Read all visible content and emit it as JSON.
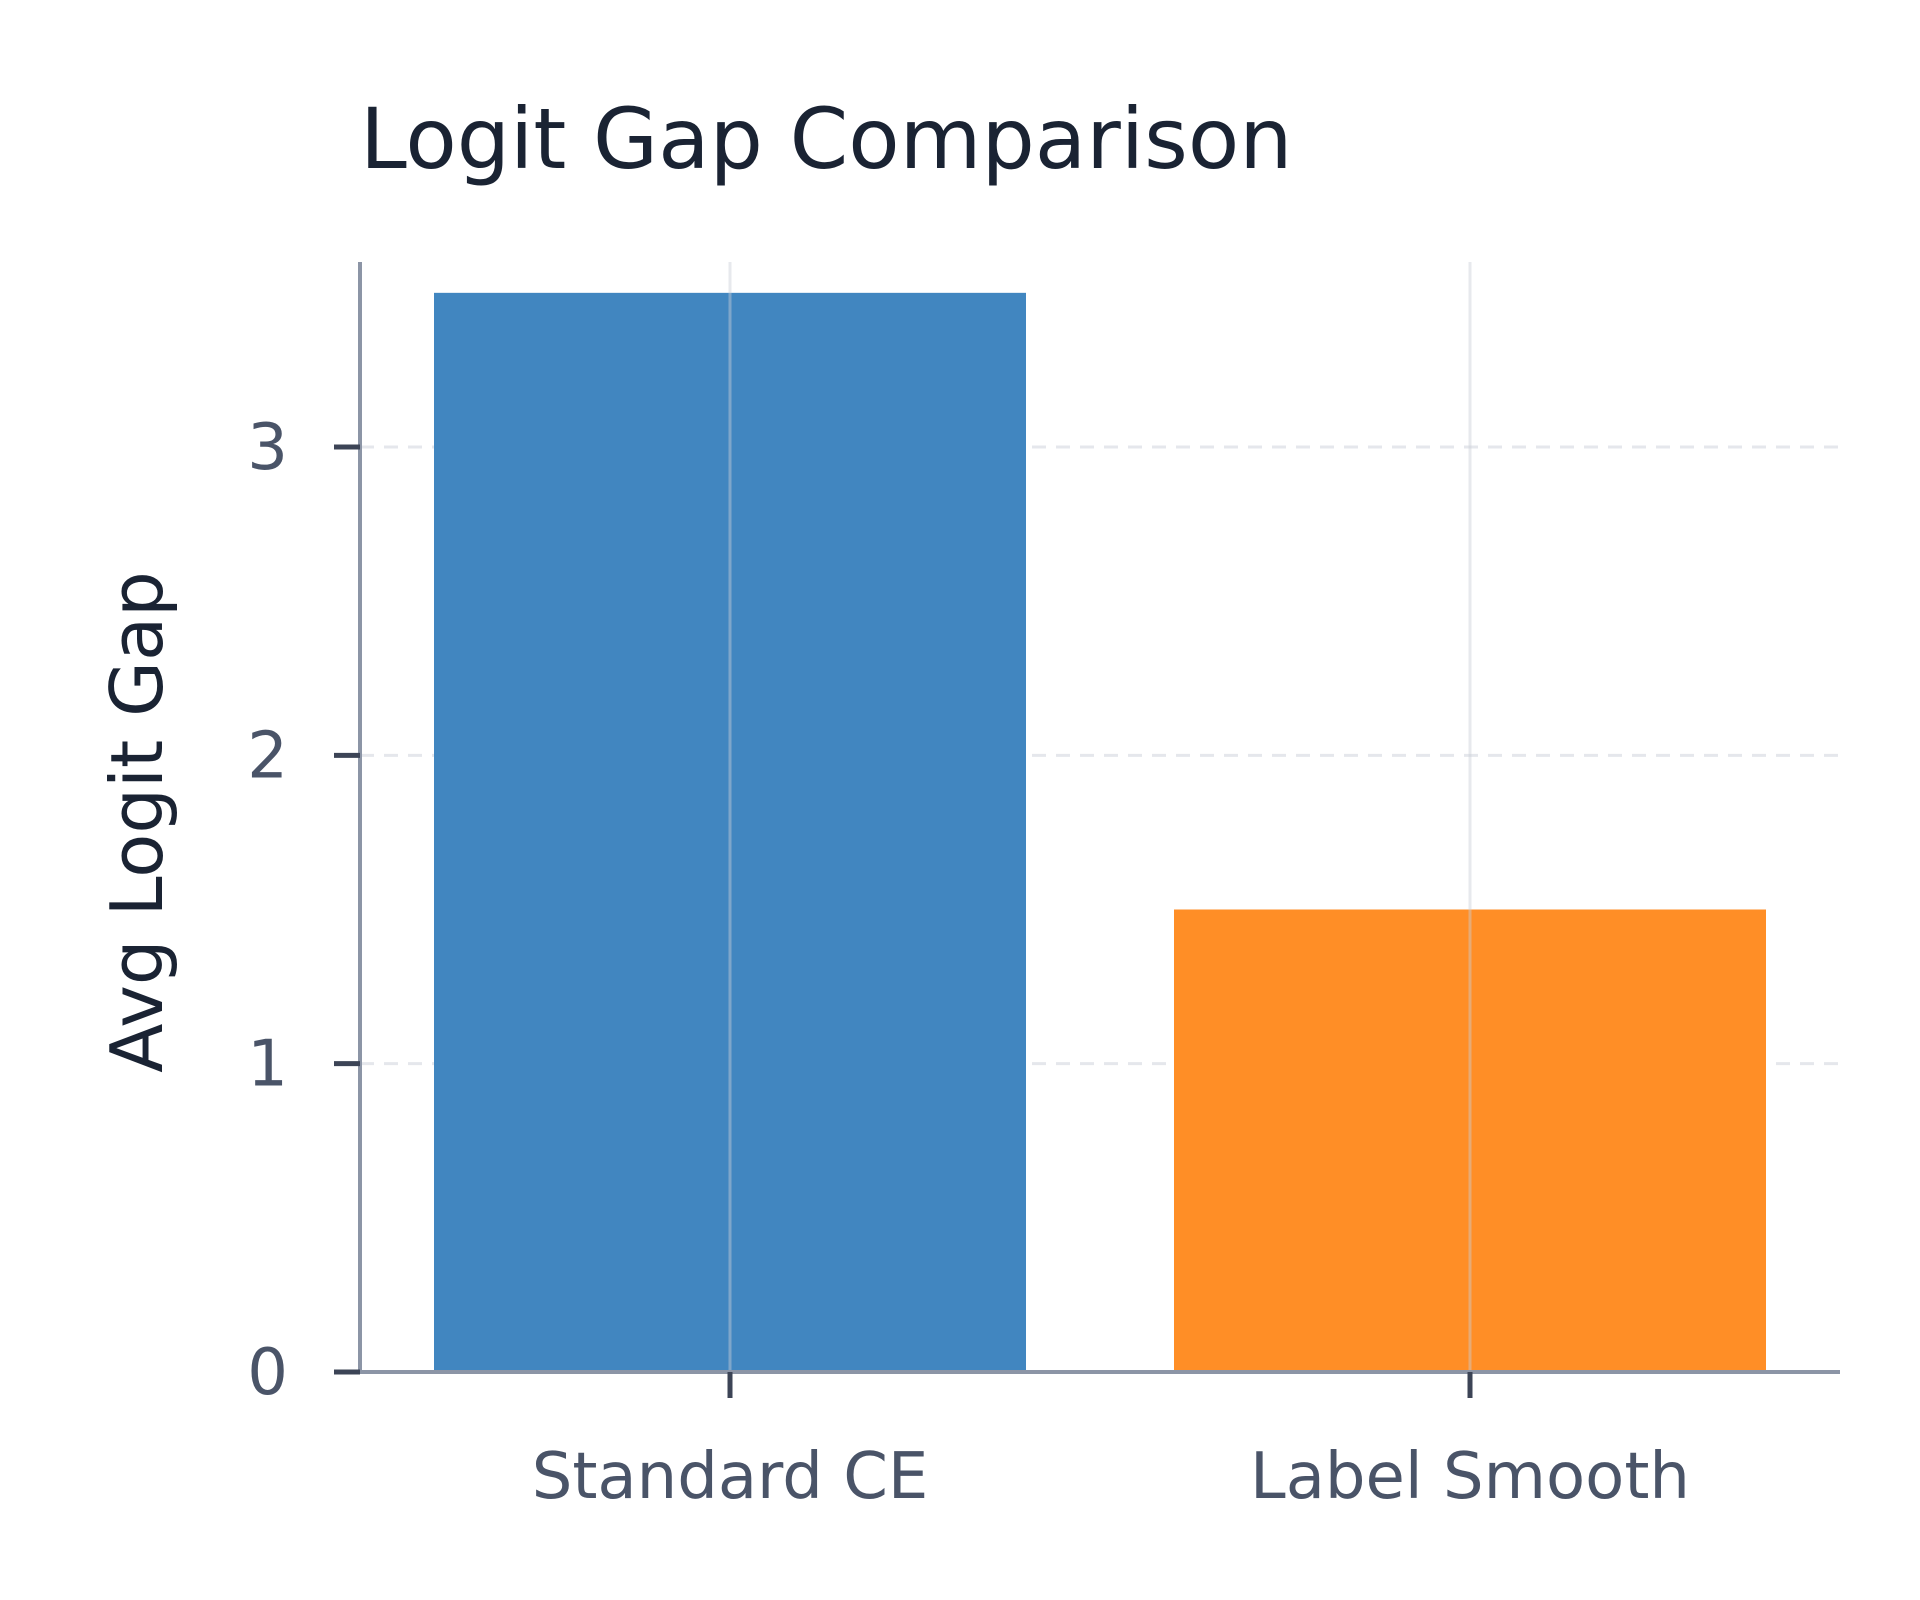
{
  "chart_data": {
    "type": "bar",
    "title": "Logit Gap Comparison",
    "xlabel": "",
    "ylabel": "Avg Logit Gap",
    "categories": [
      "Standard CE",
      "Label Smooth"
    ],
    "values": [
      3.5,
      1.5
    ],
    "ylim": [
      0,
      3.6
    ],
    "yticks": [
      0,
      1,
      2,
      3
    ],
    "grid": "on",
    "legend": "none",
    "colors": {
      "bars": [
        "#3b82be",
        "#ff8a1f"
      ],
      "axis": "#8c95a6",
      "grid": "#e5e7ec",
      "title": "#1a2333",
      "tick_text": "#4a5468"
    }
  }
}
